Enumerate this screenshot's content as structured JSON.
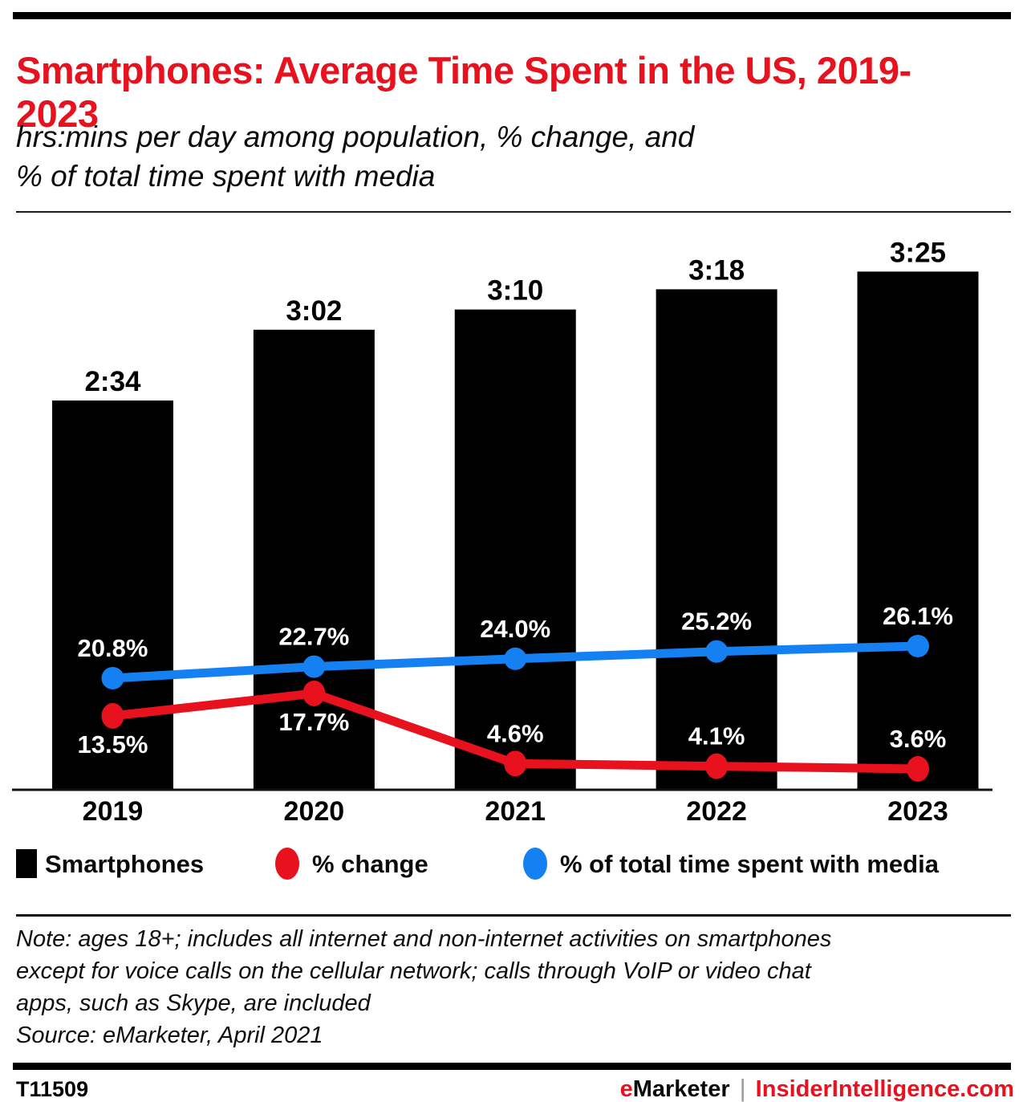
{
  "header": {
    "title": "Smartphones: Average Time Spent in the US, 2019-2023",
    "subtitle_lines": [
      "hrs:mins per day among population, % change, and",
      "% of total time spent with media"
    ]
  },
  "chart_data": {
    "type": "bar",
    "title": "Smartphones: Average Time Spent in the US, 2019-2023",
    "categories": [
      "2019",
      "2020",
      "2021",
      "2022",
      "2023"
    ],
    "bar_series": {
      "name": "Smartphones",
      "unit": "hrs:mins per day",
      "values": [
        "2:34",
        "3:02",
        "3:10",
        "3:18",
        "3:25"
      ],
      "color": "#000000"
    },
    "line_series": [
      {
        "name": "% change",
        "values": [
          13.5,
          17.7,
          4.6,
          4.1,
          3.6
        ],
        "labels": [
          "13.5%",
          "17.7%",
          "4.6%",
          "4.1%",
          "3.6%"
        ],
        "color": "#e8111e"
      },
      {
        "name": "% of total time spent with media",
        "values": [
          20.8,
          22.7,
          24.0,
          25.2,
          26.1
        ],
        "labels": [
          "20.8%",
          "22.7%",
          "24.0%",
          "25.2%",
          "26.1%"
        ],
        "color": "#1580f2"
      }
    ],
    "axis": {
      "x_ticks": [
        "2019",
        "2020",
        "2021",
        "2022",
        "2023"
      ],
      "grid": false,
      "y_axis_shown": false
    },
    "legend_position": "bottom"
  },
  "legend": [
    {
      "label": "Smartphones",
      "swatch": "square",
      "color": "#000000"
    },
    {
      "label": "% change",
      "swatch": "dot",
      "color": "#e8111e"
    },
    {
      "label": "% of total time spent with media",
      "swatch": "dot",
      "color": "#1580f2"
    }
  ],
  "note_lines": [
    "Note: ages 18+; includes all internet and non-internet activities on smartphones",
    "except for voice calls on the cellular network; calls through VoIP or video chat",
    "apps, such as Skype, are included",
    "Source: eMarketer, April 2021"
  ],
  "footer": {
    "chart_id": "T11509",
    "brand_prefix": "e",
    "brand_rest": "Marketer",
    "separator": "|",
    "site": "InsiderIntelligence.com"
  },
  "colors": {
    "accent_red": "#e8111e",
    "accent_blue": "#1580f2",
    "bar_black": "#000000"
  }
}
